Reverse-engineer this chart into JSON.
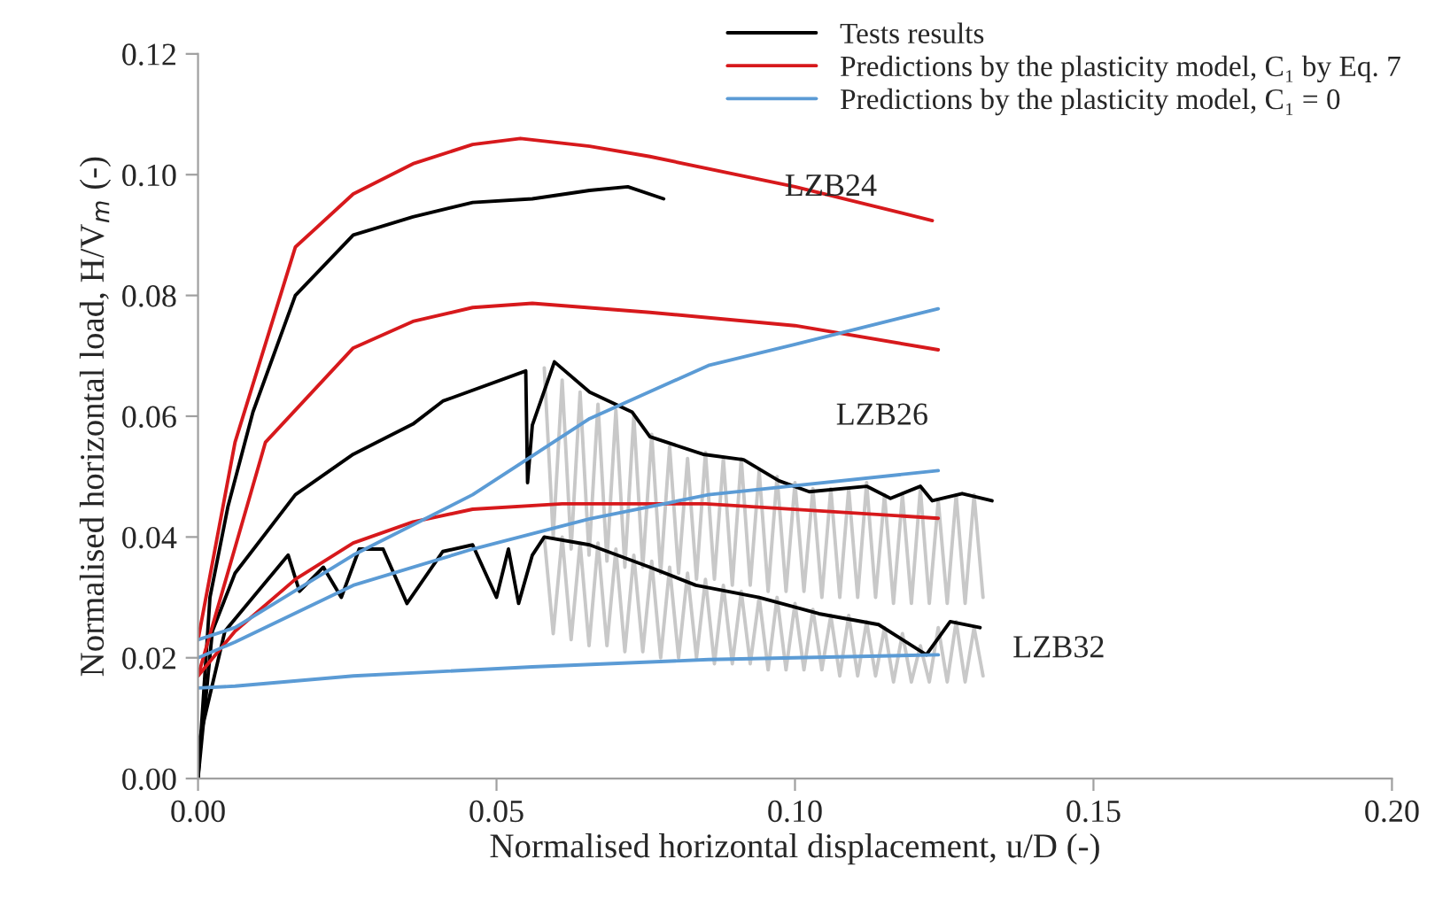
{
  "chart_data": {
    "type": "line",
    "xlabel": "Normalised horizontal displacement, u/D (-)",
    "ylabel": "Normalised horizontal load, H/V$_{m}$ (-)",
    "xlim": [
      0,
      0.2
    ],
    "xticks": [
      {
        "value": 0,
        "label": "0.00"
      },
      {
        "value": 0.05,
        "label": "0.05"
      },
      {
        "value": 0.1,
        "label": "0.10"
      },
      {
        "value": 0.15,
        "label": "0.15"
      },
      {
        "value": 0.2,
        "label": "0.20"
      }
    ],
    "ylim": [
      0,
      0.12
    ],
    "yticks": [
      {
        "value": 0,
        "label": "0.00"
      },
      {
        "value": 0.02,
        "label": "0.02"
      },
      {
        "value": 0.04,
        "label": "0.04"
      },
      {
        "value": 0.06,
        "label": "0.06"
      },
      {
        "value": 0.08,
        "label": "0.08"
      },
      {
        "value": 0.1,
        "label": "0.10"
      },
      {
        "value": 0.12,
        "label": "0.12"
      }
    ],
    "grid": false,
    "legend": "top right",
    "marker": "none",
    "line_style": "solid",
    "series": [
      {
        "color": "#c8c8c8",
        "x": [
          0.058,
          0.0595,
          0.061,
          0.0625,
          0.064,
          0.0655,
          0.067,
          0.0685,
          0.07,
          0.0715,
          0.073,
          0.0745,
          0.076,
          0.0775,
          0.079,
          0.0805,
          0.082,
          0.0835,
          0.085,
          0.0865,
          0.088,
          0.0895,
          0.091,
          0.0925,
          0.094,
          0.0955,
          0.097,
          0.0985,
          0.1,
          0.1015,
          0.103,
          0.1045,
          0.106,
          0.1075,
          0.109,
          0.1105,
          0.112,
          0.1135,
          0.115,
          0.1165,
          0.118,
          0.1195,
          0.121,
          0.1225,
          0.124,
          0.1255,
          0.127,
          0.1285,
          0.13,
          0.1315
        ],
        "values": [
          0.068,
          0.04,
          0.066,
          0.038,
          0.064,
          0.037,
          0.062,
          0.036,
          0.061,
          0.035,
          0.06,
          0.035,
          0.057,
          0.034,
          0.055,
          0.034,
          0.053,
          0.033,
          0.054,
          0.033,
          0.053,
          0.032,
          0.053,
          0.032,
          0.051,
          0.031,
          0.05,
          0.031,
          0.049,
          0.031,
          0.048,
          0.03,
          0.048,
          0.03,
          0.048,
          0.03,
          0.049,
          0.03,
          0.047,
          0.029,
          0.047,
          0.029,
          0.048,
          0.029,
          0.046,
          0.029,
          0.047,
          0.029,
          0.047,
          0.03
        ]
      },
      {
        "color": "#c8c8c8",
        "x": [
          0.058,
          0.0595,
          0.061,
          0.0625,
          0.064,
          0.0655,
          0.067,
          0.0685,
          0.07,
          0.0715,
          0.073,
          0.0745,
          0.076,
          0.0775,
          0.079,
          0.0805,
          0.082,
          0.0835,
          0.085,
          0.0865,
          0.088,
          0.0895,
          0.091,
          0.0925,
          0.094,
          0.0955,
          0.097,
          0.0985,
          0.1,
          0.1015,
          0.103,
          0.1045,
          0.106,
          0.1075,
          0.109,
          0.1105,
          0.112,
          0.1135,
          0.115,
          0.1165,
          0.118,
          0.1195,
          0.121,
          0.1225,
          0.124,
          0.1255,
          0.127,
          0.1285,
          0.13,
          0.1315
        ],
        "values": [
          0.04,
          0.024,
          0.04,
          0.023,
          0.039,
          0.022,
          0.039,
          0.022,
          0.038,
          0.021,
          0.037,
          0.021,
          0.036,
          0.02,
          0.035,
          0.02,
          0.034,
          0.02,
          0.033,
          0.019,
          0.032,
          0.019,
          0.031,
          0.019,
          0.03,
          0.018,
          0.03,
          0.018,
          0.029,
          0.018,
          0.028,
          0.018,
          0.027,
          0.017,
          0.027,
          0.017,
          0.026,
          0.017,
          0.025,
          0.016,
          0.024,
          0.016,
          0.022,
          0.016,
          0.025,
          0.016,
          0.026,
          0.016,
          0.025,
          0.017
        ]
      },
      {
        "name": "Tests results",
        "color": "#000000",
        "x": [
          0,
          0.002,
          0.005,
          0.0092,
          0.0163,
          0.026,
          0.036,
          0.046,
          0.056,
          0.0656,
          0.072,
          0.078
        ],
        "values": [
          0,
          0.03,
          0.045,
          0.0607,
          0.08,
          0.09,
          0.093,
          0.0954,
          0.096,
          0.0974,
          0.098,
          0.096
        ]
      },
      {
        "color": "#000000",
        "x": [
          0,
          0.0024,
          0.0062,
          0.0163,
          0.026,
          0.036,
          0.041,
          0.0549,
          0.0552,
          0.056,
          0.0597,
          0.0656,
          0.0727,
          0.0757,
          0.0846,
          0.0914,
          0.0973,
          0.1024,
          0.112,
          0.116,
          0.121,
          0.123,
          0.128,
          0.133
        ],
        "values": [
          0,
          0.0244,
          0.034,
          0.047,
          0.0537,
          0.0587,
          0.0625,
          0.0675,
          0.049,
          0.0585,
          0.069,
          0.064,
          0.0607,
          0.0566,
          0.0537,
          0.0528,
          0.0493,
          0.0475,
          0.0484,
          0.0464,
          0.0484,
          0.046,
          0.0472,
          0.046
        ]
      },
      {
        "color": "#000000",
        "x": [
          0,
          0.0003,
          0.0045,
          0.0092,
          0.0151,
          0.017,
          0.021,
          0.024,
          0.027,
          0.031,
          0.035,
          0.041,
          0.046,
          0.05,
          0.052,
          0.0537,
          0.056,
          0.058,
          0.0656,
          0.0757,
          0.0834,
          0.094,
          0.104,
          0.114,
          0.122,
          0.126,
          0.131
        ],
        "values": [
          0,
          0.0067,
          0.0244,
          0.03,
          0.037,
          0.031,
          0.035,
          0.03,
          0.038,
          0.038,
          0.029,
          0.0376,
          0.0387,
          0.03,
          0.038,
          0.029,
          0.037,
          0.04,
          0.0387,
          0.035,
          0.032,
          0.03,
          0.0273,
          0.0255,
          0.0205,
          0.026,
          0.025
        ]
      },
      {
        "name": "Predictions by the plasticity model, C₁ by Eq. 7",
        "color": "#d7191c",
        "x": [
          0,
          0.0062,
          0.0163,
          0.026,
          0.036,
          0.046,
          0.054,
          0.0656,
          0.0757,
          0.1,
          0.123
        ],
        "values": [
          0.023,
          0.0557,
          0.088,
          0.0968,
          0.1018,
          0.105,
          0.106,
          0.1047,
          0.103,
          0.098,
          0.0924
        ]
      },
      {
        "color": "#d7191c",
        "x": [
          0,
          0.0113,
          0.026,
          0.036,
          0.046,
          0.056,
          0.0757,
          0.1,
          0.124
        ],
        "values": [
          0.017,
          0.0557,
          0.0713,
          0.0757,
          0.078,
          0.0787,
          0.0772,
          0.075,
          0.071
        ]
      },
      {
        "color": "#d7191c",
        "x": [
          0,
          0.0062,
          0.0163,
          0.026,
          0.036,
          0.046,
          0.061,
          0.085,
          0.124
        ],
        "values": [
          0.017,
          0.0244,
          0.033,
          0.039,
          0.0425,
          0.0446,
          0.0455,
          0.0455,
          0.0431
        ]
      },
      {
        "name": "Predictions by the plasticity model, C₁ = 0",
        "color": "#5b9bd5",
        "x": [
          0,
          0.0062,
          0.026,
          0.046,
          0.0656,
          0.0855,
          0.1,
          0.124
        ],
        "values": [
          0.023,
          0.025,
          0.037,
          0.047,
          0.0596,
          0.0684,
          0.0719,
          0.0778
        ]
      },
      {
        "color": "#5b9bd5",
        "x": [
          0,
          0.0062,
          0.026,
          0.046,
          0.0656,
          0.0855,
          0.124
        ],
        "values": [
          0.02,
          0.0226,
          0.032,
          0.038,
          0.043,
          0.047,
          0.051
        ]
      },
      {
        "color": "#5b9bd5",
        "x": [
          0,
          0.0062,
          0.026,
          0.056,
          0.0855,
          0.124
        ],
        "values": [
          0.015,
          0.0153,
          0.017,
          0.0185,
          0.0197,
          0.0205
        ]
      }
    ],
    "annotations": [
      "LZB24",
      "LZB26",
      "LZB32"
    ]
  }
}
